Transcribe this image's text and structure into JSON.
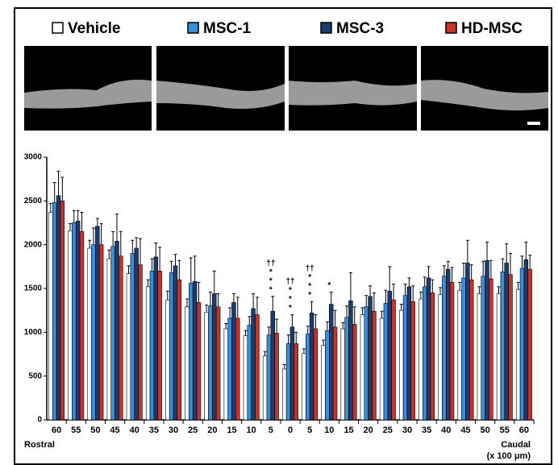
{
  "chart_data": {
    "type": "bar",
    "categories": [
      "60",
      "55",
      "50",
      "45",
      "40",
      "35",
      "30",
      "25",
      "20",
      "15",
      "10",
      "5",
      "0",
      "5",
      "10",
      "15",
      "20",
      "25",
      "30",
      "35",
      "40",
      "45",
      "50",
      "55",
      "60"
    ],
    "series": [
      {
        "name": "Vehicle",
        "color": "#ffffff",
        "values": [
          2370,
          2160,
          1960,
          1840,
          1670,
          1520,
          1370,
          1290,
          1230,
          1040,
          960,
          730,
          580,
          760,
          850,
          1040,
          1200,
          1160,
          1250,
          1380,
          1430,
          1480,
          1440,
          1440,
          1490
        ],
        "errors": [
          100,
          80,
          90,
          100,
          90,
          80,
          100,
          90,
          80,
          60,
          60,
          50,
          50,
          50,
          60,
          70,
          80,
          80,
          70,
          80,
          80,
          90,
          80,
          80,
          80
        ]
      },
      {
        "name": "MSC-1",
        "color": "#3b8fd9",
        "values": [
          2480,
          2250,
          2000,
          1980,
          1900,
          1700,
          1680,
          1560,
          1300,
          1160,
          1080,
          970,
          870,
          980,
          1020,
          1170,
          1290,
          1330,
          1420,
          1520,
          1640,
          1620,
          1640,
          1690,
          1730
        ],
        "errors": [
          230,
          140,
          190,
          170,
          150,
          140,
          130,
          290,
          160,
          120,
          100,
          90,
          100,
          90,
          100,
          130,
          130,
          150,
          130,
          110,
          120,
          170,
          170,
          150,
          140
        ]
      },
      {
        "name": "MSC-3",
        "color": "#1b3c6e",
        "values": [
          2560,
          2270,
          2210,
          2040,
          1960,
          1860,
          1760,
          1580,
          1440,
          1340,
          1270,
          1240,
          1060,
          1220,
          1320,
          1360,
          1410,
          1470,
          1520,
          1620,
          1720,
          1790,
          1820,
          1790,
          1830
        ],
        "errors": [
          280,
          120,
          90,
          310,
          120,
          160,
          130,
          290,
          260,
          100,
          170,
          170,
          140,
          130,
          140,
          320,
          120,
          280,
          100,
          130,
          90,
          260,
          210,
          220,
          200
        ]
      },
      {
        "name": "HD-MSC",
        "color": "#c9322b",
        "values": [
          2500,
          2150,
          2000,
          1870,
          1770,
          1700,
          1600,
          1340,
          1290,
          1160,
          1200,
          990,
          870,
          1040,
          1060,
          1090,
          1240,
          1370,
          1350,
          1450,
          1570,
          1600,
          1610,
          1660,
          1720
        ],
        "errors": [
          270,
          220,
          240,
          280,
          300,
          270,
          220,
          230,
          150,
          240,
          200,
          160,
          130,
          160,
          190,
          200,
          210,
          180,
          180,
          150,
          170,
          170,
          210,
          240,
          160
        ]
      }
    ],
    "ylim": [
      0,
      3000
    ],
    "yticks": [
      0,
      500,
      1000,
      1500,
      2000,
      2500,
      3000
    ],
    "x_start_label": "Rostral",
    "x_end_label": "Caudal",
    "x_unit_label": "(x 100 μm)",
    "annotations": [
      {
        "text": "*",
        "category": 11
      },
      {
        "text": "*",
        "category": 11
      },
      {
        "text": "*",
        "category": 11
      },
      {
        "text": "††",
        "category": 11
      },
      {
        "text": "*",
        "category": 12
      },
      {
        "text": "*",
        "category": 12
      },
      {
        "text": "*",
        "category": 12
      },
      {
        "text": "††",
        "category": 12
      },
      {
        "text": "*",
        "category": 13
      },
      {
        "text": "*",
        "category": 13
      },
      {
        "text": "*",
        "category": 13
      },
      {
        "text": "††",
        "category": 13
      },
      {
        "text": "*",
        "category": 14
      }
    ]
  }
}
